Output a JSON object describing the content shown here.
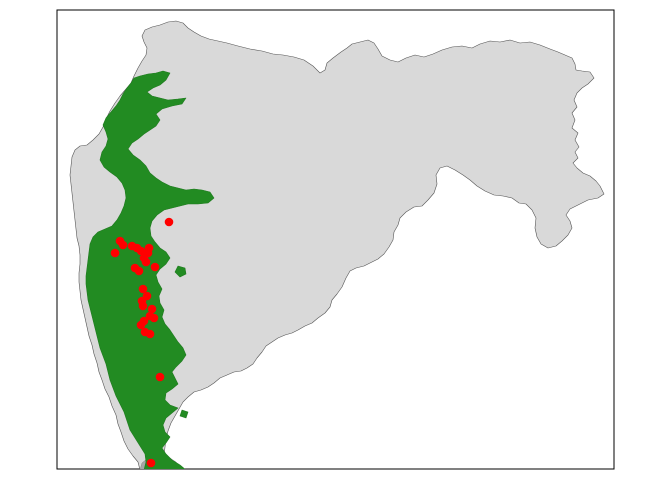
{
  "map": {
    "colors": {
      "background": "#ffffff",
      "frame": "#000000",
      "state_fill": "#d9d9d9",
      "state_border": "#555555",
      "forest_fill": "#228b22",
      "neighbor_fill": "#a6a6a6",
      "point": "#ff0000"
    },
    "layers": [
      "state-boundary",
      "western-ghats-forest",
      "neighbor-region",
      "occurrence-points"
    ],
    "occurrence_count": 27
  }
}
